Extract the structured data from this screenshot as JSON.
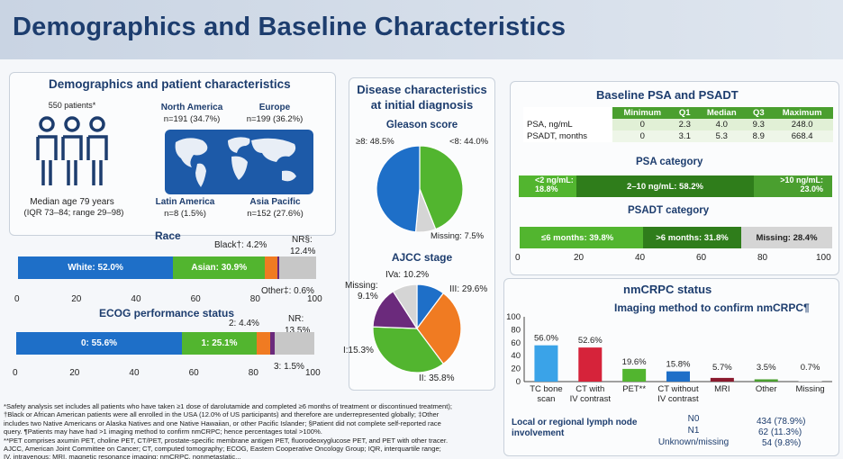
{
  "header": {
    "title": "Demographics and Baseline Characteristics"
  },
  "demo": {
    "title": "Demographics and patient characteristics",
    "patients": "550 patients*",
    "age": "Median age 79 years",
    "age_range": "(IQR 73–84; range 29–98)",
    "regions": [
      {
        "name": "North America",
        "n": "n=191 (34.7%)"
      },
      {
        "name": "Europe",
        "n": "n=199 (36.2%)"
      },
      {
        "name": "Latin America",
        "n": "n=8 (1.5%)"
      },
      {
        "name": "Asia Pacific",
        "n": "n=152 (27.6%)"
      }
    ]
  },
  "race": {
    "title": "Race",
    "white_label": "White: 52.0%",
    "asian_label": "Asian: 30.9%",
    "black_label": "Black†: 4.2%",
    "nr_label": "NR§:",
    "nr_value": "12.4%",
    "other_label": "Other‡: 0.6%",
    "ticks": [
      "0",
      "20",
      "40",
      "60",
      "80",
      "100"
    ]
  },
  "ecog": {
    "title": "ECOG performance status",
    "e0_label": "0: 55.6%",
    "e1_label": "1: 25.1%",
    "e2_label": "2: 4.4%",
    "nr_label": "NR:",
    "nr_value": "13.5%",
    "e3_label": "3: 1.5%",
    "ticks": [
      "0",
      "20",
      "40",
      "60",
      "80",
      "100"
    ]
  },
  "disease": {
    "title_line1": "Disease characteristics",
    "title_line2": "at initial diagnosis",
    "gleason_title": "Gleason score",
    "g_ge8": "≥8: 48.5%",
    "g_lt8": "<8: 44.0%",
    "g_missing": "Missing: 7.5%",
    "ajcc_title": "AJCC stage",
    "a_iva": "IVa: 10.2%",
    "a_missing1": "Missing:",
    "a_missing2": "9.1%",
    "a_iii": "III: 29.6%",
    "a_i": "I:15.3%",
    "a_ii": "II: 35.8%"
  },
  "psa": {
    "title": "Baseline PSA and PSADT",
    "columns": [
      "",
      "Minimum",
      "Q1",
      "Median",
      "Q3",
      "Maximum"
    ],
    "rows": [
      [
        "PSA, ng/mL",
        "0",
        "2.3",
        "4.0",
        "9.3",
        "248.0"
      ],
      [
        "PSADT, months",
        "0",
        "3.1",
        "5.3",
        "8.9",
        "668.4"
      ]
    ],
    "cat_title": "PSA category",
    "cat_lt2a": "<2 ng/mL:",
    "cat_lt2b": "18.8%",
    "cat_mid": "2–10 ng/mL: 58.2%",
    "cat_gt10a": ">10 ng/mL:",
    "cat_gt10b": "23.0%",
    "psadt_title": "PSADT category",
    "psadt_le6": "≤6 months: 39.8%",
    "psadt_gt6": ">6 months: 31.8%",
    "psadt_missing": "Missing: 28.4%",
    "ticks": [
      "0",
      "20",
      "40",
      "60",
      "80",
      "100"
    ]
  },
  "nmcrpc": {
    "title": "nmCRPC status",
    "subtitle": "Imaging method to confirm nmCRPC¶",
    "y_ticks": [
      "100",
      "80",
      "60",
      "40",
      "20",
      "0"
    ],
    "node_title1": "Local or regional lymph node",
    "node_title2": "involvement",
    "node_rows": [
      {
        "label": "N0",
        "value": "434 (78.9%)"
      },
      {
        "label": "N1",
        "value": "62 (11.3%)"
      },
      {
        "label": "Unknown/missing",
        "value": "54 (9.8%)"
      }
    ]
  },
  "footnotes": [
    "*Safety analysis set includes all patients who have taken ≥1 dose of darolutamide and completed ≥6 months of treatment or discontinued treatment);",
    "†Black or African American patients were all enrolled in the USA (12.0% of US participants) and therefore are underrepresented globally; ‡Other",
    "includes two Native Americans or Alaska Natives and one Native Hawaiian, or other Pacific Islander; §Patient did not complete self-reported race",
    "query. ¶Patients may have had >1 imaging method to confirm nmCRPC; hence percentages total >100%.",
    "**PET comprises axumin PET, choline PET, CT/PET, prostate-specific membrane antigen PET, fluorodeoxyglucose PET, and PET with other tracer.",
    "AJCC, American Joint Committee on Cancer; CT, computed tomography; ECOG, Eastern Cooperative Oncology Group; IQR, interquartile range;",
    "IV, intravenous; MRI, magnetic resonance imaging; nmCRPC, nonmetastatic..."
  ],
  "chart_data": [
    {
      "type": "bar",
      "title": "Race",
      "categories": [
        "White",
        "Asian",
        "Black",
        "Other",
        "NR"
      ],
      "values": [
        52.0,
        30.9,
        4.2,
        0.6,
        12.4
      ],
      "ylim": [
        0,
        100
      ],
      "colors": [
        "#1e6fc8",
        "#52b52f",
        "#f07b22",
        "#6b2a7c",
        "#c7c7c7"
      ]
    },
    {
      "type": "bar",
      "title": "ECOG performance status",
      "categories": [
        "0",
        "1",
        "2",
        "3",
        "NR"
      ],
      "values": [
        55.6,
        25.1,
        4.4,
        1.5,
        13.5
      ],
      "ylim": [
        0,
        100
      ],
      "colors": [
        "#1e6fc8",
        "#52b52f",
        "#f07b22",
        "#6b2a7c",
        "#c7c7c7"
      ]
    },
    {
      "type": "pie",
      "title": "Gleason score",
      "categories": [
        "≥8",
        "<8",
        "Missing"
      ],
      "values": [
        48.5,
        44.0,
        7.5
      ],
      "colors": [
        "#1e6fc8",
        "#52b52f",
        "#d5d5d5"
      ]
    },
    {
      "type": "pie",
      "title": "AJCC stage",
      "categories": [
        "IVa",
        "III",
        "II",
        "I",
        "Missing"
      ],
      "values": [
        10.2,
        29.6,
        35.8,
        15.3,
        9.1
      ],
      "colors": [
        "#1e6fc8",
        "#f07b22",
        "#52b52f",
        "#6b2a7c",
        "#d5d5d5"
      ]
    },
    {
      "type": "bar",
      "title": "PSA category",
      "categories": [
        "<2 ng/mL",
        "2–10 ng/mL",
        ">10 ng/mL"
      ],
      "values": [
        18.8,
        58.2,
        23.0
      ],
      "ylim": [
        0,
        100
      ],
      "colors": [
        "#52b52f",
        "#2f7d1b",
        "#4a9f2f"
      ]
    },
    {
      "type": "bar",
      "title": "PSADT category",
      "categories": [
        "≤6 months",
        ">6 months",
        "Missing"
      ],
      "values": [
        39.8,
        31.8,
        28.4
      ],
      "ylim": [
        0,
        100
      ],
      "colors": [
        "#52b52f",
        "#2f7d1b",
        "#c7c7c7"
      ]
    },
    {
      "type": "bar",
      "title": "Imaging method to confirm nmCRPC¶",
      "categories": [
        "TC bone scan",
        "CT with IV contrast",
        "PET**",
        "CT without IV contrast",
        "MRI",
        "Other",
        "Missing"
      ],
      "category_lines": [
        [
          "TC bone",
          "scan"
        ],
        [
          "CT with",
          "IV contrast"
        ],
        [
          "PET**"
        ],
        [
          "CT without",
          "IV contrast"
        ],
        [
          "MRI"
        ],
        [
          "Other"
        ],
        [
          "Missing"
        ]
      ],
      "values": [
        56.0,
        52.6,
        19.6,
        15.8,
        5.7,
        3.5,
        0.7
      ],
      "labels": [
        "56.0%",
        "52.6%",
        "19.6%",
        "15.8%",
        "5.7%",
        "3.5%",
        "0.7%"
      ],
      "ylim": [
        0,
        100
      ],
      "colors": [
        "#3aa3e8",
        "#d6233a",
        "#52b52f",
        "#1e6fc8",
        "#8a1a2e",
        "#4a9f2f",
        "#d5d5d5"
      ]
    }
  ]
}
